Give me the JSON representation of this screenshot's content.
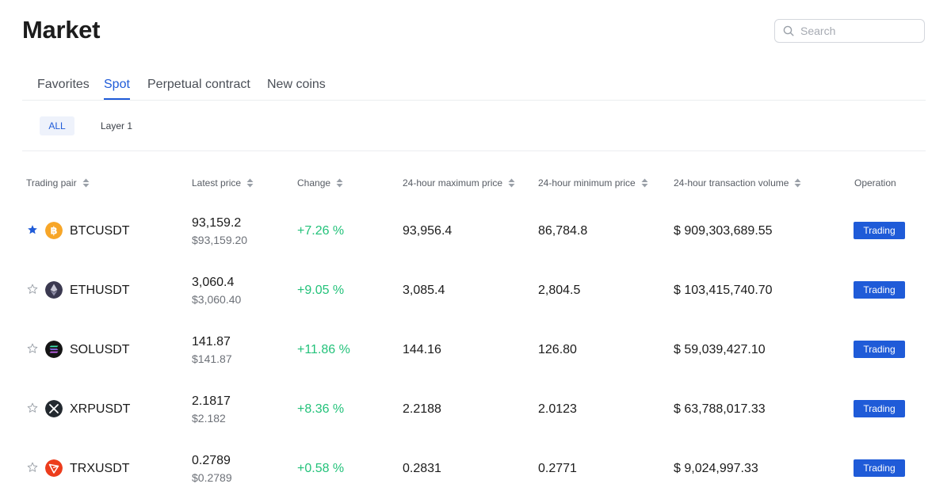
{
  "page": {
    "title": "Market"
  },
  "search": {
    "placeholder": "Search",
    "value": ""
  },
  "tabs": [
    {
      "label": "Favorites",
      "active": false
    },
    {
      "label": "Spot",
      "active": true
    },
    {
      "label": "Perpetual contract",
      "active": false
    },
    {
      "label": "New coins",
      "active": false
    }
  ],
  "filters": [
    {
      "label": "ALL",
      "active": true
    },
    {
      "label": "Layer 1",
      "active": false
    }
  ],
  "table": {
    "columns": {
      "pair": "Trading pair",
      "price": "Latest price",
      "change": "Change",
      "max": "24-hour maximum price",
      "min": "24-hour minimum price",
      "volume": "24-hour transaction volume",
      "operation": "Operation"
    },
    "rows": [
      {
        "favorite": true,
        "icon": "bitcoin-icon",
        "pair": "BTCUSDT",
        "price": "93,159.2",
        "price_usd": "$93,159.20",
        "change": "+7.26 %",
        "max": "93,956.4",
        "min": "86,784.8",
        "volume": "$ 909,303,689.55",
        "action": "Trading"
      },
      {
        "favorite": false,
        "icon": "ethereum-icon",
        "pair": "ETHUSDT",
        "price": "3,060.4",
        "price_usd": "$3,060.40",
        "change": "+9.05 %",
        "max": "3,085.4",
        "min": "2,804.5",
        "volume": "$ 103,415,740.70",
        "action": "Trading"
      },
      {
        "favorite": false,
        "icon": "solana-icon",
        "pair": "SOLUSDT",
        "price": "141.87",
        "price_usd": "$141.87",
        "change": "+11.86 %",
        "max": "144.16",
        "min": "126.80",
        "volume": "$ 59,039,427.10",
        "action": "Trading"
      },
      {
        "favorite": false,
        "icon": "xrp-icon",
        "pair": "XRPUSDT",
        "price": "2.1817",
        "price_usd": "$2.182",
        "change": "+8.36 %",
        "max": "2.2188",
        "min": "2.0123",
        "volume": "$ 63,788,017.33",
        "action": "Trading"
      },
      {
        "favorite": false,
        "icon": "tron-icon",
        "pair": "TRXUSDT",
        "price": "0.2789",
        "price_usd": "$0.2789",
        "change": "+0.58 %",
        "max": "0.2831",
        "min": "0.2771",
        "volume": "$ 9,024,997.33",
        "action": "Trading"
      }
    ]
  },
  "colors": {
    "accent": "#1f5bd8",
    "positive": "#23c27a",
    "star_filled": "#1f5bd8",
    "star_empty": "#9aa0a8"
  }
}
